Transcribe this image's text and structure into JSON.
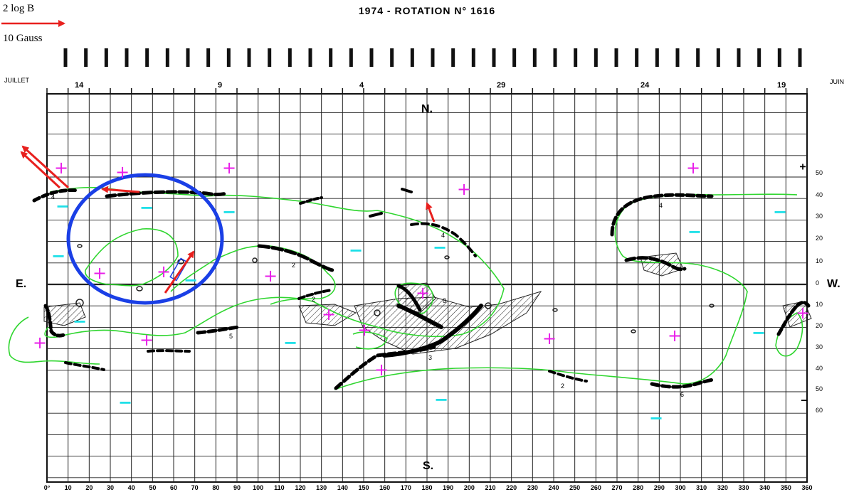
{
  "legend": {
    "scale_label": "2 log B",
    "arrow_label": "10 Gauss",
    "arrow_color": "#e8201e"
  },
  "title": "1974 - ROTATION N° 1616",
  "month_left": "JUILLET",
  "month_right": "JUIN",
  "day_ticks": [
    "14",
    "9",
    "4",
    "29",
    "24",
    "19"
  ],
  "compass": {
    "north": "N.",
    "south": "S.",
    "east": "E.",
    "west": "W."
  },
  "polarity_markers": {
    "plus": "+",
    "minus": "−"
  },
  "polarity_key": {
    "plus": "+",
    "minus": "−"
  },
  "lat_labels": [
    "50",
    "40",
    "30",
    "20",
    "10",
    "0",
    "10",
    "20",
    "30",
    "40",
    "50",
    "60"
  ],
  "lon_labels": [
    "0°",
    "10",
    "20",
    "30",
    "40",
    "50",
    "60",
    "70",
    "80",
    "90",
    "100",
    "110",
    "120",
    "130",
    "140",
    "150",
    "160",
    "170",
    "180",
    "190",
    "200",
    "210",
    "220",
    "230",
    "240",
    "250",
    "260",
    "270",
    "280",
    "290",
    "300",
    "310",
    "320",
    "330",
    "340",
    "350",
    "360"
  ],
  "filament_numbers": [
    "4",
    "2",
    "2",
    "5",
    "3",
    "8",
    "4",
    "4",
    "2",
    "6"
  ],
  "colors": {
    "boundary": "#2fd62f",
    "plus": "#e81ee8",
    "minus": "#1ee0e8",
    "circle": "#1a3fe6",
    "arrow": "#e8201e",
    "grid": "#111111"
  }
}
